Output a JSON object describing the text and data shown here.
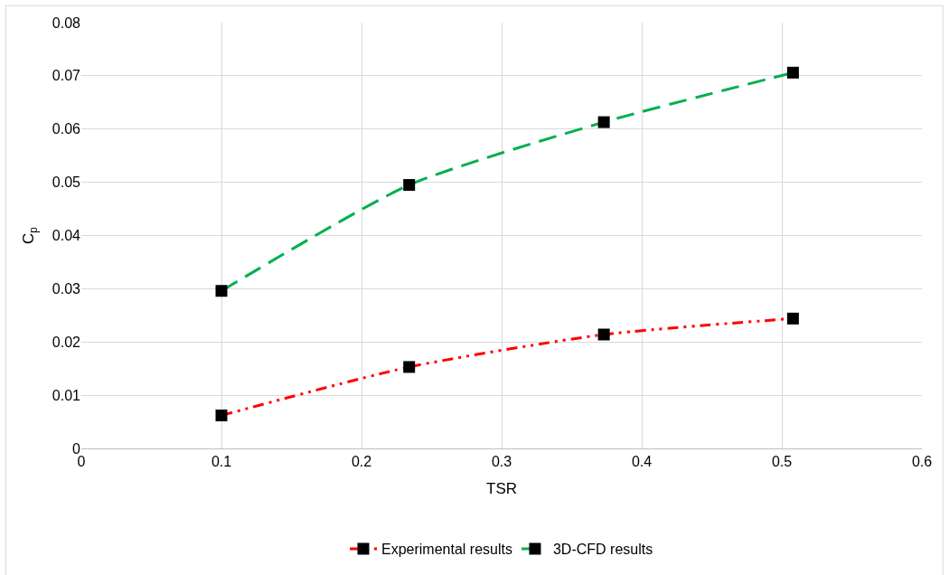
{
  "chart_data": {
    "type": "line",
    "xlabel": "TSR",
    "ylabel": "C$_{p}$",
    "series": [
      {
        "name": "Experimental results",
        "color": "#ff0000",
        "line_style": "dashdot",
        "x": [
          0.1,
          0.234,
          0.373,
          0.508
        ],
        "values": [
          0.0062,
          0.0153,
          0.0214,
          0.0244
        ]
      },
      {
        "name": "3D-CFD results",
        "color": "#00b050",
        "line_style": "dashed",
        "x": [
          0.1,
          0.234,
          0.373,
          0.508
        ],
        "values": [
          0.0296,
          0.0495,
          0.0613,
          0.0706
        ]
      }
    ],
    "xlim": [
      0,
      0.6
    ],
    "xticks": [
      0,
      0.1,
      0.2,
      0.3,
      0.4,
      0.5,
      0.6
    ],
    "ylim": [
      0,
      0.08
    ],
    "yticks": [
      0,
      0.01,
      0.02,
      0.03,
      0.04,
      0.05,
      0.06,
      0.07,
      0.08
    ],
    "grid": true,
    "legend": "bottom",
    "marker": "square"
  }
}
